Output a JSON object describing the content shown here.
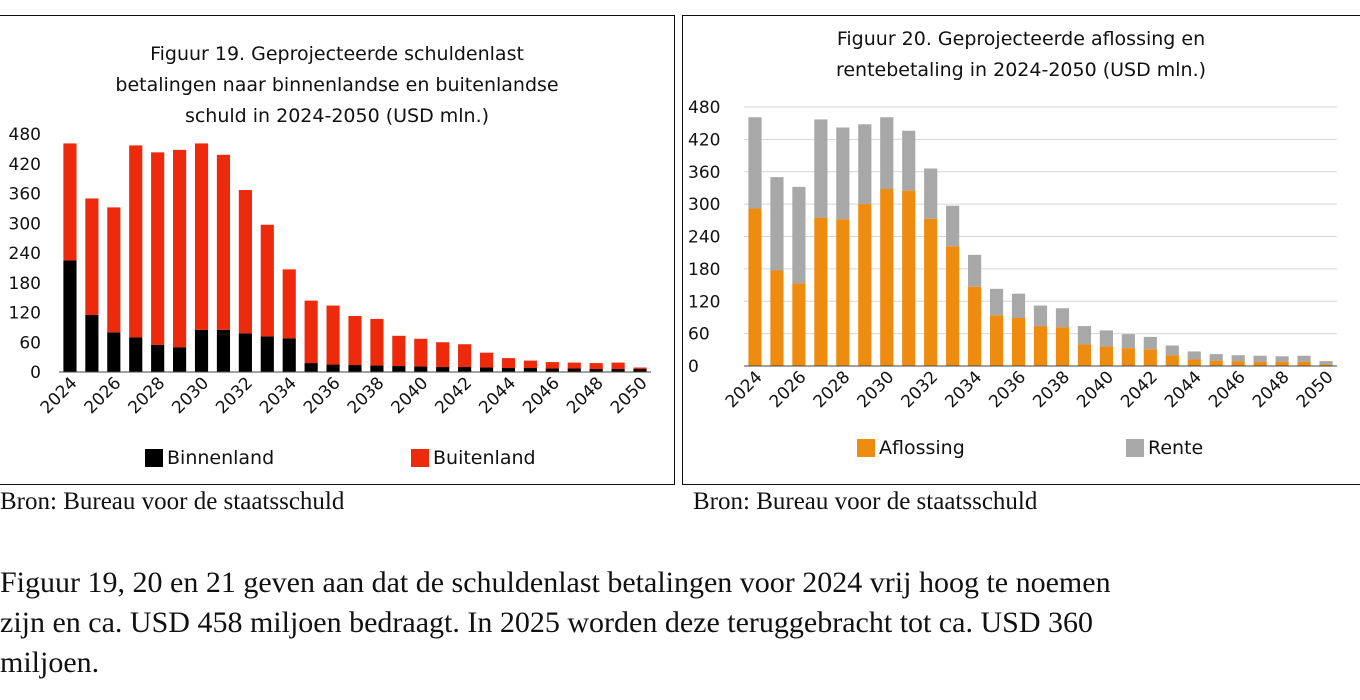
{
  "chart_data": [
    {
      "type": "bar",
      "stacked": true,
      "title": "Figuur 19. Geprojecteerde schuldenlast betalingen naar  binnenlandse en buitenlandse schuld in 2024-2050  (USD mln.)",
      "title_lines": [
        "Figuur 19. Geprojecteerde schuldenlast",
        "betalingen naar  binnenlandse en buitenlandse",
        "schuld in 2024-2050  (USD mln.)"
      ],
      "xlabel": "",
      "ylabel": "",
      "ylim": [
        0,
        480
      ],
      "yticks": [
        0,
        60,
        120,
        180,
        240,
        300,
        360,
        420,
        480
      ],
      "grid": false,
      "legend": "bottom",
      "categories": [
        2024,
        2025,
        2026,
        2027,
        2028,
        2029,
        2030,
        2031,
        2032,
        2033,
        2034,
        2035,
        2036,
        2037,
        2038,
        2039,
        2040,
        2041,
        2042,
        2043,
        2044,
        2045,
        2046,
        2047,
        2048,
        2049,
        2050
      ],
      "xtick_labels": [
        "2024",
        "2026",
        "2028",
        "2030",
        "2032",
        "2034",
        "2036",
        "2038",
        "2040",
        "2042",
        "2044",
        "2046",
        "2048",
        "2050"
      ],
      "series": [
        {
          "name": "Binnenland",
          "color": "#000000",
          "values": [
            225,
            115,
            80,
            70,
            55,
            50,
            85,
            85,
            78,
            72,
            68,
            18,
            15,
            14,
            13,
            12,
            11,
            10,
            10,
            9,
            8,
            8,
            7,
            7,
            6,
            6,
            6
          ]
        },
        {
          "name": "Buitenland",
          "color": "#ee2a0c",
          "values": [
            236,
            235,
            252,
            387,
            388,
            398,
            376,
            353,
            289,
            225,
            139,
            126,
            119,
            99,
            94,
            61,
            56,
            50,
            46,
            30,
            20,
            15,
            13,
            12,
            12,
            13,
            3
          ]
        }
      ]
    },
    {
      "type": "bar",
      "stacked": true,
      "title": "Figuur 20. Geprojecteerde aflossing en rentebetaling in 2024-2050 (USD mln.)",
      "title_lines": [
        "Figuur 20. Geprojecteerde aflossing en",
        "rentebetaling in 2024-2050 (USD mln.)"
      ],
      "xlabel": "",
      "ylabel": "",
      "ylim": [
        0,
        480
      ],
      "yticks": [
        0,
        60,
        120,
        180,
        240,
        300,
        360,
        420,
        480
      ],
      "grid": true,
      "legend": "bottom",
      "categories": [
        2024,
        2025,
        2026,
        2027,
        2028,
        2029,
        2030,
        2031,
        2032,
        2033,
        2034,
        2035,
        2036,
        2037,
        2038,
        2039,
        2040,
        2041,
        2042,
        2043,
        2044,
        2045,
        2046,
        2047,
        2048,
        2049,
        2050
      ],
      "xtick_labels": [
        "2024",
        "2026",
        "2028",
        "2030",
        "2032",
        "2034",
        "2036",
        "2038",
        "2040",
        "2042",
        "2044",
        "2046",
        "2048",
        "2050"
      ],
      "series": [
        {
          "name": "Aflossing",
          "color": "#ee8c10",
          "values": [
            292,
            177,
            153,
            275,
            272,
            300,
            328,
            325,
            273,
            222,
            147,
            94,
            89,
            74,
            72,
            40,
            36,
            33,
            31,
            20,
            12,
            10,
            9,
            8,
            8,
            8,
            3
          ]
        },
        {
          "name": "Rente",
          "color": "#a8a8a8",
          "values": [
            169,
            173,
            179,
            182,
            170,
            148,
            133,
            111,
            93,
            75,
            59,
            49,
            45,
            38,
            35,
            34,
            30,
            26,
            23,
            18,
            15,
            12,
            11,
            11,
            10,
            11,
            6
          ]
        }
      ]
    }
  ],
  "sources": {
    "left": "Bron: Bureau voor de staatsschuld",
    "right": "Bron: Bureau voor de staatsschuld"
  },
  "paragraph": {
    "line1": "Figuur 19, 20 en 21 geven aan dat de schuldenlast betalingen voor 2024 vrij hoog te noemen",
    "line2": "zijn en ca. USD 458 miljoen bedraagt. In 2025 worden deze teruggebracht tot ca. USD 360",
    "line3": "miljoen."
  }
}
